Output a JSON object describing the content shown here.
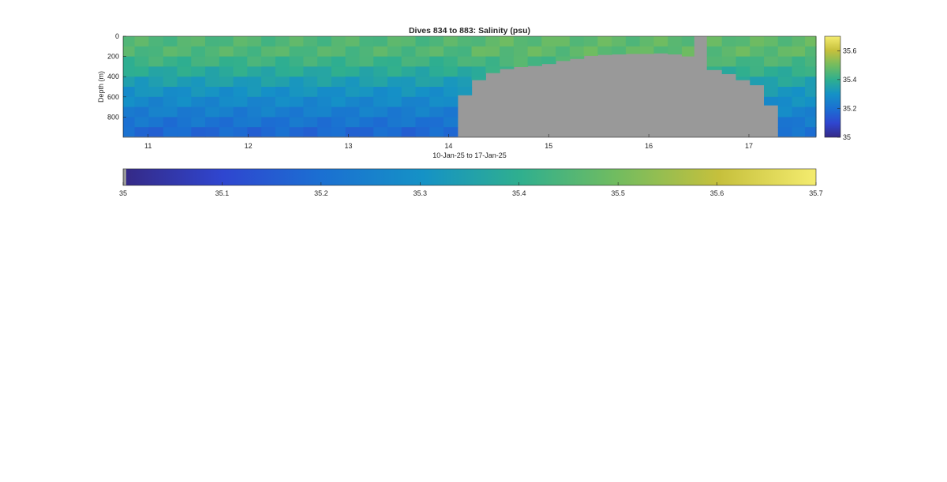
{
  "chart_data": {
    "type": "heatmap",
    "title": "Dives 834 to 883: Salinity (psu)",
    "xlabel": "10-Jan-25 to 17-Jan-25",
    "ylabel": "Depth (m)",
    "xlim": [
      10.75,
      17.67
    ],
    "ylim": [
      0,
      1000
    ],
    "y_reversed": true,
    "x_ticks": [
      11,
      12,
      13,
      14,
      15,
      16,
      17
    ],
    "y_ticks": [
      0,
      200,
      400,
      600,
      800
    ],
    "clim": [
      35.0,
      35.7
    ],
    "colormap": "parula",
    "missing_color": "#999999",
    "side_colorbar_ticks": [
      35,
      35.2,
      35.4,
      35.6
    ],
    "bottom_colorbar_ticks": [
      35,
      35.1,
      35.2,
      35.3,
      35.4,
      35.5,
      35.6,
      35.7
    ],
    "dives_x": [
      10.8,
      10.93,
      11.08,
      11.22,
      11.36,
      11.5,
      11.64,
      11.78,
      11.92,
      12.06,
      12.2,
      12.34,
      12.48,
      12.62,
      12.76,
      12.9,
      13.04,
      13.18,
      13.32,
      13.46,
      13.6,
      13.74,
      13.88,
      14.02,
      14.16,
      14.3,
      14.44,
      14.58,
      14.72,
      14.86,
      15.0,
      15.14,
      15.28,
      15.42,
      15.56,
      15.7,
      15.84,
      15.98,
      16.12,
      16.26,
      16.4,
      16.5,
      16.66,
      16.8,
      16.94,
      17.08,
      17.22,
      17.36,
      17.5,
      17.62
    ],
    "max_depth": [
      990,
      990,
      990,
      990,
      990,
      990,
      990,
      990,
      990,
      990,
      990,
      990,
      990,
      990,
      990,
      990,
      990,
      990,
      990,
      990,
      990,
      990,
      990,
      990,
      580,
      430,
      360,
      320,
      300,
      290,
      270,
      240,
      220,
      190,
      180,
      175,
      170,
      170,
      165,
      175,
      195,
      0,
      330,
      370,
      430,
      480,
      680,
      990,
      990,
      990
    ],
    "depth_bins": [
      0,
      100,
      200,
      300,
      400,
      500,
      600,
      700,
      800,
      900
    ],
    "salinity_profile": [
      35.45,
      35.45,
      35.42,
      35.38,
      35.34,
      35.3,
      35.27,
      35.24,
      35.21,
      35.18
    ]
  }
}
